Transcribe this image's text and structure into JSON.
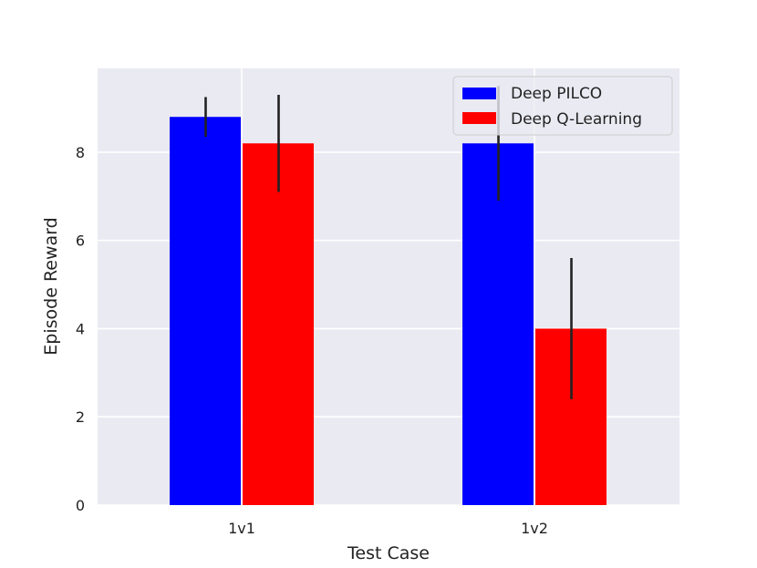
{
  "chart_data": {
    "type": "bar",
    "title": "",
    "xlabel": "Test Case",
    "ylabel": "Episode Reward",
    "categories": [
      "1v1",
      "1v2"
    ],
    "series": [
      {
        "name": "Deep PILCO",
        "color": "#0000ff",
        "values": [
          8.8,
          8.2
        ],
        "error_low": [
          8.35,
          6.9
        ],
        "error_high": [
          9.25,
          9.5
        ]
      },
      {
        "name": "Deep Q-Learning",
        "color": "#ff0000",
        "values": [
          8.2,
          4.0
        ],
        "error_low": [
          7.1,
          2.4
        ],
        "error_high": [
          9.3,
          5.6
        ]
      }
    ],
    "ylim": [
      0,
      9.9
    ],
    "yticks": [
      0,
      2,
      4,
      6,
      8
    ],
    "grid": true,
    "legend_position": "top-right",
    "background": "#eaeaf2",
    "error_bar_color": "#222222"
  }
}
